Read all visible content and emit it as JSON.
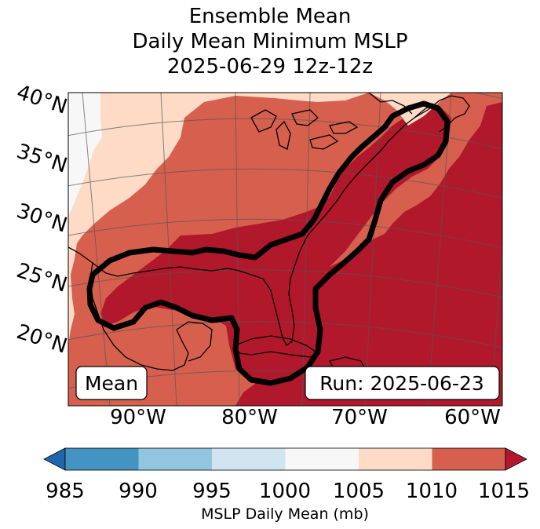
{
  "title": {
    "line1": "Ensemble Mean",
    "line2": "Daily Mean Minimum MSLP",
    "line3": "2025-06-29 12z-12z"
  },
  "map": {
    "lat_labels": [
      "40°N",
      "35°N",
      "30°N",
      "25°N",
      "20°N"
    ],
    "lon_labels": [
      "90°W",
      "80°W",
      "70°W",
      "60°W"
    ],
    "box_left": "Mean",
    "box_right": "Run: 2025-06-23"
  },
  "colorbar": {
    "ticks": [
      "985",
      "990",
      "995",
      "1000",
      "1005",
      "1010",
      "1015"
    ],
    "label": "MSLP Daily Mean (mb)",
    "colors": {
      "below": "#2166ac",
      "985_990": "#4393c3",
      "990_995": "#92c5de",
      "995_1000": "#d1e5f0",
      "1000_1005": "#f7f7f7",
      "1005_1010": "#fddbc7",
      "1010_1015": "#d6604d",
      "above": "#b2182b"
    }
  }
}
